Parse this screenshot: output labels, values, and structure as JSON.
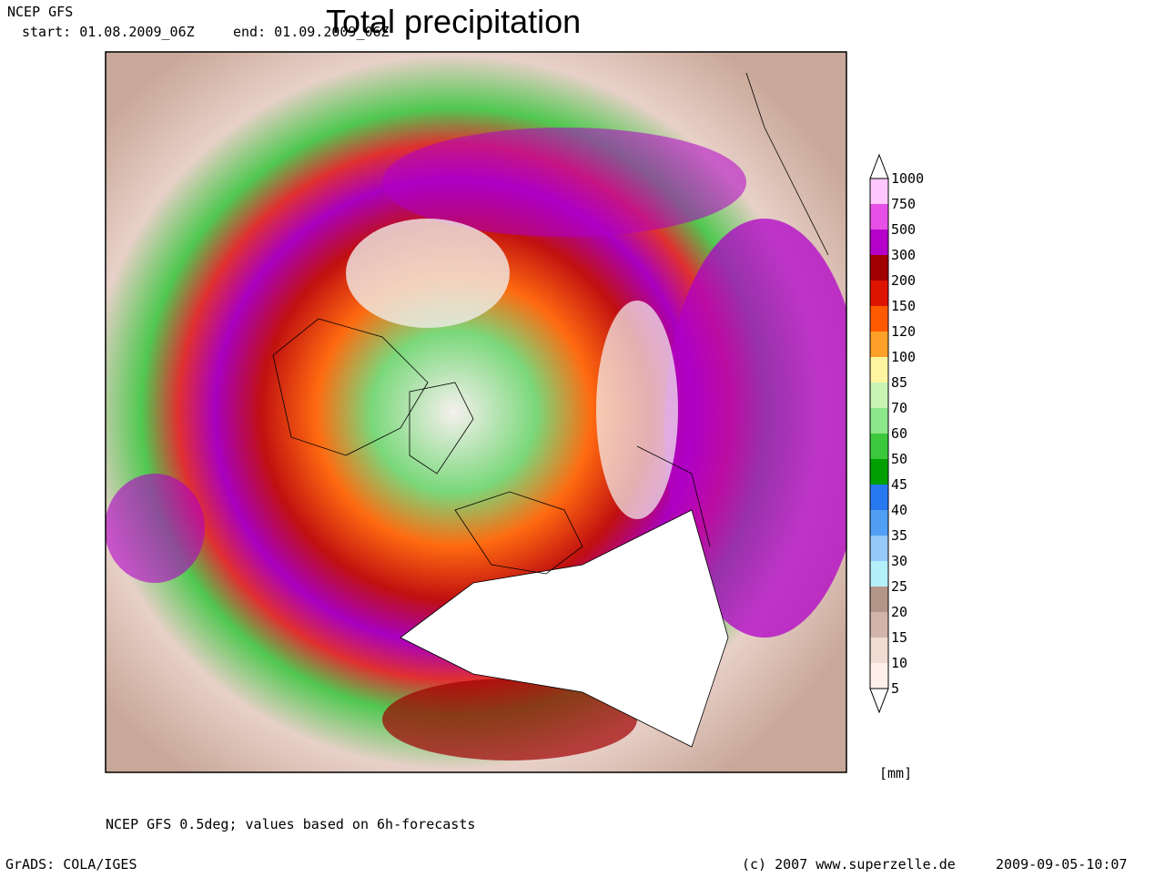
{
  "header": {
    "model": "NCEP GFS",
    "start": "start: 01.08.2009_06Z",
    "end": "end: 01.09.2009_06Z",
    "title": "Total precipitation"
  },
  "legend": {
    "levels": [
      "1000",
      "750",
      "500",
      "300",
      "200",
      "150",
      "120",
      "100",
      "85",
      "70",
      "60",
      "50",
      "45",
      "40",
      "35",
      "30",
      "25",
      "20",
      "15",
      "10",
      "5"
    ],
    "colors": [
      "#ffffff",
      "#ffc8ff",
      "#e650e6",
      "#b400c8",
      "#a00000",
      "#dc1400",
      "#ff5a00",
      "#ffa028",
      "#fff5a0",
      "#c8f5b4",
      "#8ce68c",
      "#3cc83c",
      "#00a000",
      "#2878f0",
      "#509ff5",
      "#96c8fa",
      "#b4f0fa",
      "#b49688",
      "#d2b4aa",
      "#f0dcd2",
      "#fff0eb",
      "#ffffff"
    ],
    "unit": "[mm]"
  },
  "footer": {
    "note": "NCEP GFS 0.5deg; values based on 6h-forecasts",
    "software": "GrADS: COLA/IGES",
    "copyright": "(c) 2007 www.superzelle.de",
    "timestamp": "2009-09-05-10:07"
  }
}
